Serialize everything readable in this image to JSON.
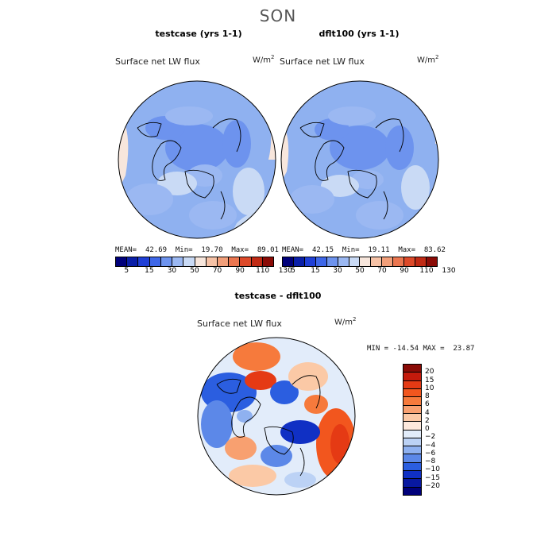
{
  "season": "SON",
  "panels": {
    "left": {
      "title": "testcase (yrs 1-1)",
      "variable": "Surface net LW flux",
      "unit": "W/m",
      "unit_exp": "2",
      "mean_label": "MEAN=",
      "mean": "42.69",
      "min_label": "Min=",
      "min": "19.70",
      "max_label": "Max=",
      "max": "89.01"
    },
    "right": {
      "title": "dflt100 (yrs 1-1)",
      "variable": "Surface net LW flux",
      "unit": "W/m",
      "unit_exp": "2",
      "mean_label": "MEAN=",
      "mean": "42.15",
      "min_label": "Min=",
      "min": "19.11",
      "max_label": "Max=",
      "max": "83.62"
    },
    "diff": {
      "title": "testcase - dflt100",
      "variable": "Surface net LW flux",
      "unit": "W/m",
      "unit_exp": "2",
      "minmax_text": "MIN = -14.54 MAX =  23.87"
    }
  },
  "chart_data": [
    {
      "type": "heatmap",
      "title": "testcase (yrs 1-1)",
      "projection": "north polar stereographic",
      "variable": "Surface net LW flux",
      "units": "W/m^2",
      "stats": {
        "mean": 42.69,
        "min": 19.7,
        "max": 89.01
      },
      "colorbar": {
        "levels": [
          5,
          15,
          30,
          50,
          70,
          90,
          110,
          130
        ],
        "tick_labels": [
          "5",
          "15",
          "30",
          "50",
          "70",
          "90",
          "110",
          "130"
        ],
        "colors": [
          "#00007a",
          "#0a1fa8",
          "#1f3fd6",
          "#3e67e8",
          "#6d93ee",
          "#9bb8f2",
          "#c9daf5",
          "#f7e6dc",
          "#f6c2a6",
          "#f29f7a",
          "#eb7650",
          "#dd4a2a",
          "#c02a14",
          "#8a0b06"
        ]
      }
    },
    {
      "type": "heatmap",
      "title": "dflt100 (yrs 1-1)",
      "projection": "north polar stereographic",
      "variable": "Surface net LW flux",
      "units": "W/m^2",
      "stats": {
        "mean": 42.15,
        "min": 19.11,
        "max": 83.62
      },
      "colorbar": {
        "levels": [
          5,
          15,
          30,
          50,
          70,
          90,
          110,
          130
        ],
        "tick_labels": [
          "5",
          "15",
          "30",
          "50",
          "70",
          "90",
          "110",
          "130"
        ],
        "colors": [
          "#00007a",
          "#0a1fa8",
          "#1f3fd6",
          "#3e67e8",
          "#6d93ee",
          "#9bb8f2",
          "#c9daf5",
          "#f7e6dc",
          "#f6c2a6",
          "#f29f7a",
          "#eb7650",
          "#dd4a2a",
          "#c02a14",
          "#8a0b06"
        ]
      }
    },
    {
      "type": "heatmap",
      "title": "testcase - dflt100",
      "projection": "north polar stereographic",
      "variable": "Surface net LW flux",
      "units": "W/m^2",
      "stats": {
        "min": -14.54,
        "max": 23.87
      },
      "colorbar": {
        "levels": [
          20,
          15,
          10,
          8,
          6,
          4,
          2,
          0,
          -2,
          -4,
          -6,
          -8,
          -10,
          -15,
          -20
        ],
        "tick_labels": [
          "20",
          "15",
          "10",
          "8",
          "6",
          "4",
          "2",
          "0",
          "−2",
          "−4",
          "−6",
          "−8",
          "−10",
          "−15",
          "−20"
        ],
        "colors": [
          "#8a0b06",
          "#c41a0c",
          "#e53a14",
          "#f2561e",
          "#f67a3c",
          "#f8a070",
          "#fbc9a6",
          "#fde9dd",
          "#e2ecfa",
          "#bcd2f5",
          "#8fb1f0",
          "#5c88e8",
          "#2b5ee0",
          "#1030c4",
          "#0818a0",
          "#00007a"
        ]
      }
    }
  ]
}
